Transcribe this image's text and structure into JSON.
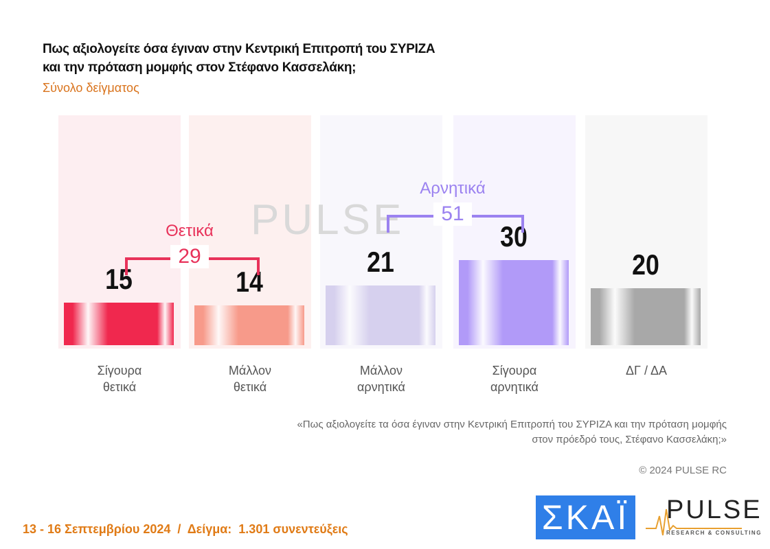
{
  "header": {
    "title_line1": "Πως αξιολογείτε όσα έγιναν στην Κεντρική Επιτροπή του ΣΥΡΙΖΑ",
    "title_line2": "και την πρόταση μομφής στον Στέφανο Κασσελάκη;",
    "subtitle": "Σύνολο δείγματος"
  },
  "chart_data": {
    "type": "bar",
    "title": "Πως αξιολογείτε όσα έγιναν στην Κεντρική Επιτροπή του ΣΥΡΙΖΑ και την πρόταση μομφής στον Στέφανο Κασσελάκη;",
    "subtitle": "Σύνολο δείγματος",
    "categories": [
      [
        "Σίγουρα",
        "θετικά"
      ],
      [
        "Μάλλον",
        "θετικά"
      ],
      [
        "Μάλλον",
        "αρνητικά"
      ],
      [
        "Σίγουρα",
        "αρνητικά"
      ],
      [
        "ΔΓ / ΔΑ"
      ]
    ],
    "values": [
      15,
      14,
      21,
      30,
      20
    ],
    "colors": [
      "#f0284e",
      "#f79a8a",
      "#d6d0ee",
      "#b19af8",
      "#a8a8a8"
    ],
    "column_bg": [
      "#fdeef1",
      "#fdf0ef",
      "#f8f7fc",
      "#f7f4fe",
      "#f7f7f7"
    ],
    "groups": [
      {
        "label": "Θετικά",
        "value": 29,
        "color": "#e8325a"
      },
      {
        "label": "Αρνητικά",
        "value": 51,
        "color": "#9b82f0"
      }
    ],
    "ylim": [
      0,
      80
    ],
    "grid": false
  },
  "watermark": "PULSE",
  "note_line1": "«Πως αξιολογείτε τα όσα έγιναν στην Κεντρική Επιτροπή του ΣΥΡΙΖΑ και την πρόταση μομφής",
  "note_line2": "στον πρόεδρό τους, Στέφανο Κασσελάκη;»",
  "copyright": "© 2024 PULSE RC",
  "footer": "13 - 16 Σεπτεμβρίου 2024  /  Δείγμα:  1.301 συνεντεύξεις",
  "logos": {
    "skai": "ΣΚΑΪ",
    "pulse": "PULSE",
    "pulse_sub": "RESEARCH & CONSULTING"
  }
}
